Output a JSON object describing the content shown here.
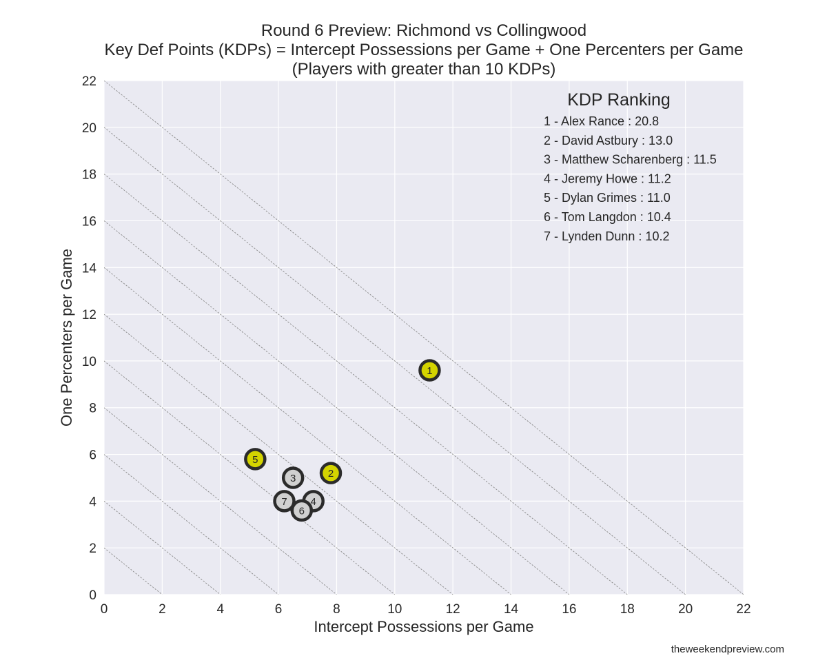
{
  "chart_data": {
    "type": "scatter",
    "title_lines": [
      "Round 6 Preview: Richmond vs Collingwood",
      "Key Def Points (KDPs) = Intercept Possessions per Game + One Percenters per Game",
      "(Players with greater than 10 KDPs)"
    ],
    "xlabel": "Intercept Possessions per Game",
    "ylabel": "One Percenters per Game",
    "xlim": [
      0,
      22
    ],
    "ylim": [
      0,
      22
    ],
    "xticks": [
      0,
      2,
      4,
      6,
      8,
      10,
      12,
      14,
      16,
      18,
      20,
      22
    ],
    "yticks": [
      0,
      2,
      4,
      6,
      8,
      10,
      12,
      14,
      16,
      18,
      20,
      22
    ],
    "grid": true,
    "iso_lines": [
      2,
      4,
      6,
      8,
      10,
      12,
      14,
      16,
      18,
      20,
      22
    ],
    "colors": {
      "background": "#eaeaf2",
      "grid": "#ffffff",
      "richmond": "#d4d400",
      "collingwood": "#d0d0d0",
      "marker_edge": "#2b2b2b",
      "iso_line": "#8a8a8a"
    },
    "points": [
      {
        "label": "1",
        "x": 11.2,
        "y": 9.6,
        "team": "richmond"
      },
      {
        "label": "2",
        "x": 7.8,
        "y": 5.2,
        "team": "richmond"
      },
      {
        "label": "3",
        "x": 6.5,
        "y": 5.0,
        "team": "collingwood"
      },
      {
        "label": "4",
        "x": 7.2,
        "y": 4.0,
        "team": "collingwood"
      },
      {
        "label": "5",
        "x": 5.2,
        "y": 5.8,
        "team": "richmond"
      },
      {
        "label": "6",
        "x": 6.8,
        "y": 3.6,
        "team": "collingwood"
      },
      {
        "label": "7",
        "x": 6.2,
        "y": 4.0,
        "team": "collingwood"
      }
    ],
    "legend_title": "KDP Ranking",
    "legend_position": "top-right",
    "legend_items": [
      "1 - Alex Rance : 20.8",
      "2 - David Astbury : 13.0",
      "3 - Matthew Scharenberg : 11.5",
      "4 - Jeremy Howe : 11.2",
      "5 - Dylan Grimes : 11.0",
      "6 - Tom Langdon : 10.4",
      "7 - Lynden Dunn : 10.2"
    ]
  },
  "footer": "theweekendpreview.com"
}
